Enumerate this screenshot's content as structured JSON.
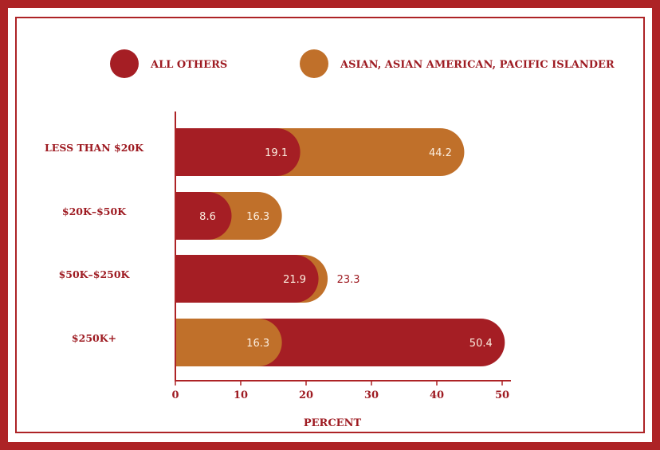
{
  "colors": {
    "frame": "#ad2326",
    "all_others": "#a51e24",
    "asian": "#c0702a",
    "text": "#9e1b22",
    "value_text_inside": "#fbeee0"
  },
  "legend": {
    "items": [
      {
        "label": "ALL OTHERS",
        "color": "#a51e24"
      },
      {
        "label": "ASIAN, ASIAN AMERICAN, PACIFIC ISLANDER",
        "color": "#c0702a"
      }
    ]
  },
  "chart_data": {
    "type": "bar",
    "orientation": "horizontal",
    "categories": [
      "LESS THAN $20K",
      "$20K–$50K",
      "$50K–$250K",
      "$250K+"
    ],
    "series": [
      {
        "name": "ALL OTHERS",
        "values": [
          19.1,
          8.6,
          21.9,
          50.4
        ]
      },
      {
        "name": "ASIAN, ASIAN AMERICAN, PACIFIC ISLANDER",
        "values": [
          44.2,
          16.3,
          23.3,
          16.3
        ]
      }
    ],
    "value_labels": [
      [
        "19.1",
        "8.6",
        "21.9",
        "50.4"
      ],
      [
        "44.2",
        "16.3",
        "23.3",
        "16.3"
      ]
    ],
    "xlabel": "PERCENT",
    "ylabel": "",
    "xlim": [
      0,
      50
    ],
    "xticks": [
      "0",
      "10",
      "20",
      "30",
      "40",
      "50"
    ],
    "grid": false,
    "legend_position": "top"
  }
}
